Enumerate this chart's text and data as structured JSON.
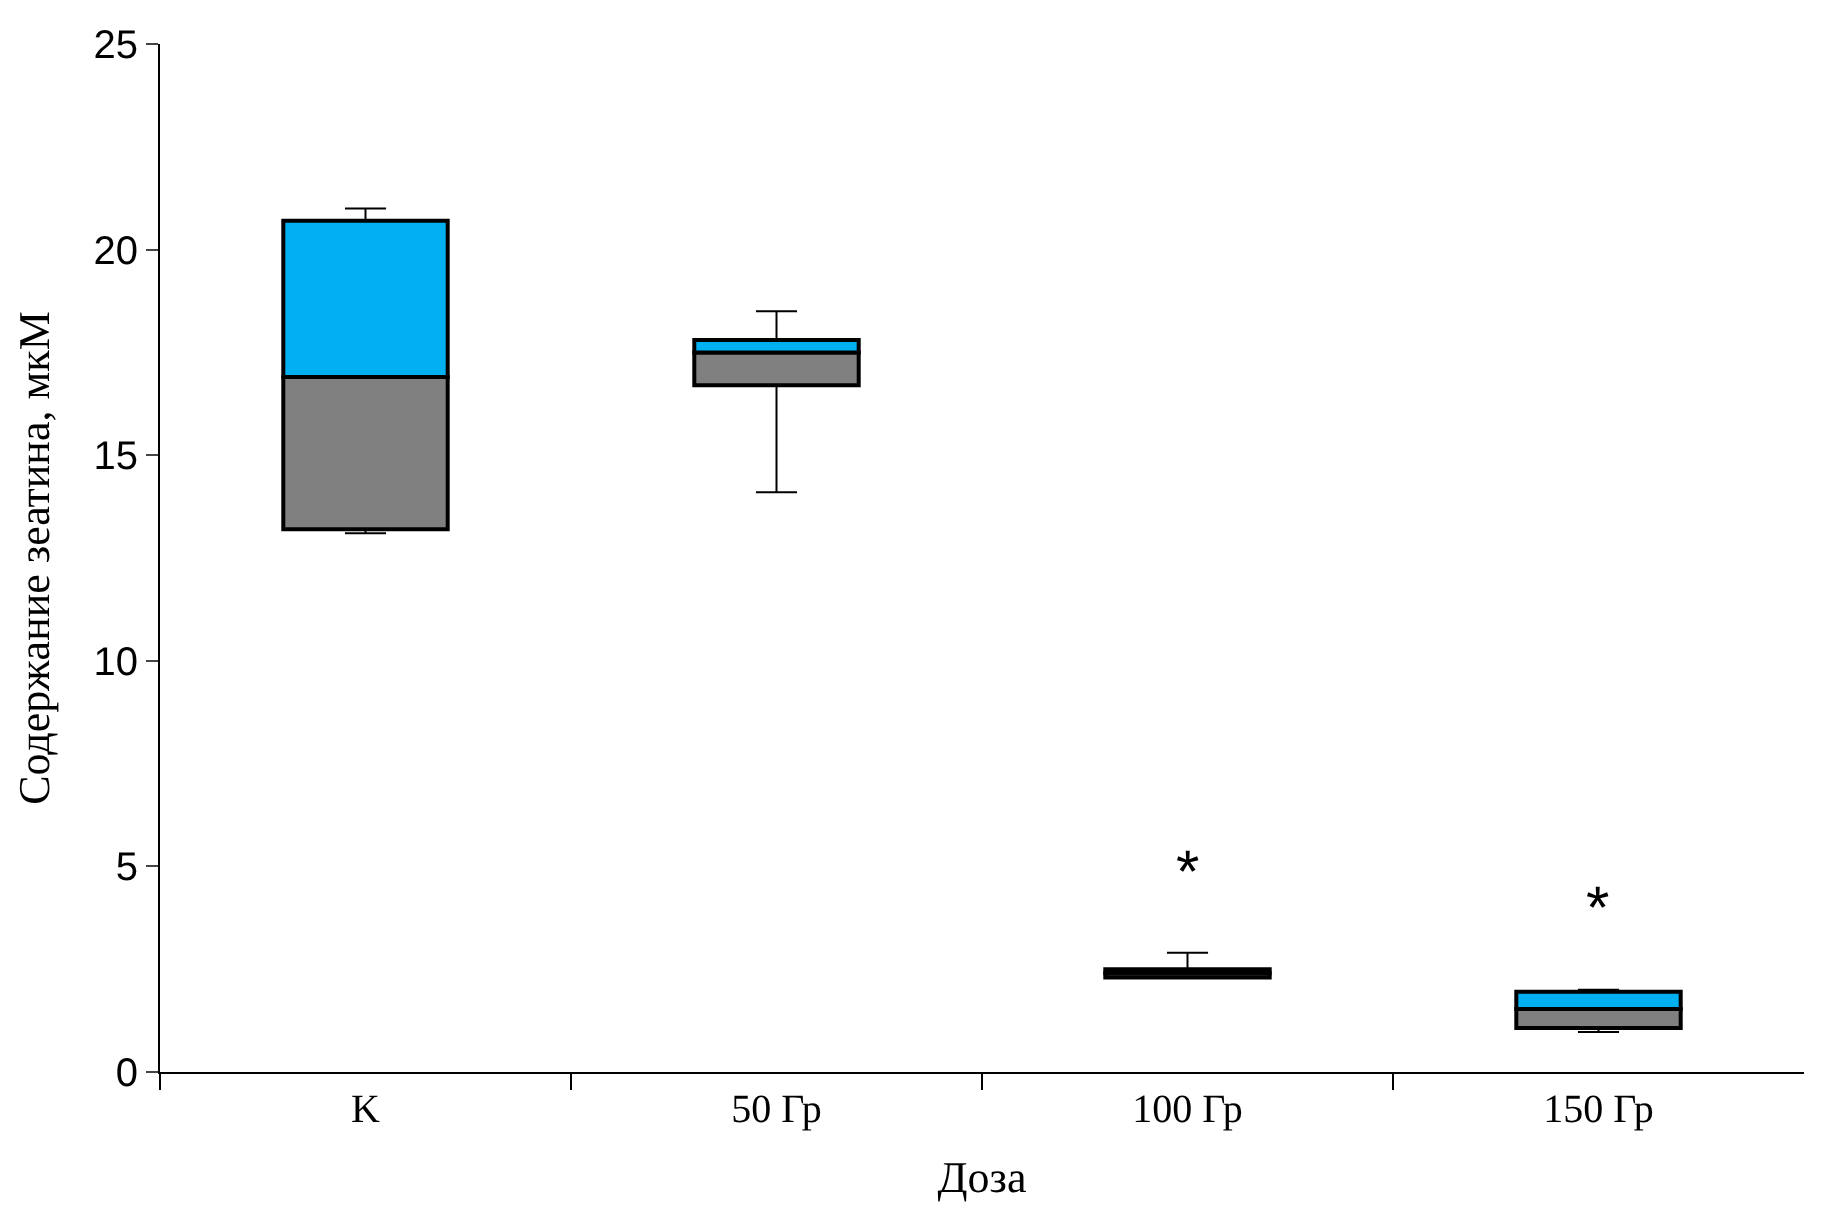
{
  "chart_data": {
    "type": "box",
    "xlabel": "Доза",
    "ylabel": "Содержание зеатина, мкМ",
    "categories": [
      "K",
      "50 Гр",
      "100 Гр",
      "150 Гр"
    ],
    "boxes": [
      {
        "low": 13.1,
        "q1": 13.2,
        "median": 16.9,
        "q3": 20.7,
        "high": 21.0
      },
      {
        "low": 14.1,
        "q1": 16.7,
        "median": 17.5,
        "q3": 17.8,
        "high": 18.5
      },
      {
        "low": 2.3,
        "q1": 2.3,
        "median": 2.4,
        "q3": 2.5,
        "high": 2.9
      },
      {
        "low": 0.97,
        "q1": 1.07,
        "median": 1.53,
        "q3": 1.95,
        "high": 2.0
      }
    ],
    "annotations": [
      "*",
      "*"
    ],
    "ylim": [
      0,
      25
    ],
    "yticks": [
      0,
      5,
      10,
      15,
      20,
      25
    ]
  }
}
